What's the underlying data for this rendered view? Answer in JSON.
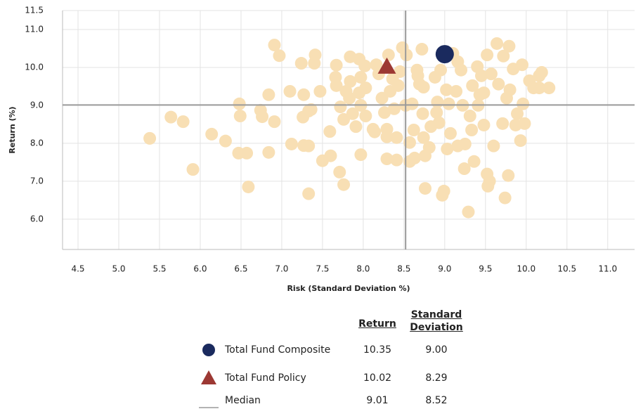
{
  "chart_data": {
    "type": "scatter",
    "xlabel": "Risk (Standard Deviation %)",
    "ylabel": "Return (%)",
    "xlim": [
      4.31,
      11.33
    ],
    "ylim": [
      5.2,
      11.5
    ],
    "xticks": [
      4.5,
      {
        "value": 5,
        "label": "5.0"
      },
      5.5,
      {
        "value": 6,
        "label": "6.0"
      },
      6.5,
      {
        "value": 7,
        "label": "7.0"
      },
      7.5,
      {
        "value": 8,
        "label": "8.0"
      },
      8.5,
      {
        "value": 9,
        "label": "9.0"
      },
      9.5,
      {
        "value": 10,
        "label": "10.0"
      },
      10.5,
      {
        "value": 11,
        "label": "11.0"
      }
    ],
    "yticks": [
      {
        "value": 6,
        "label": "6.0"
      },
      {
        "value": 7,
        "label": "7.0"
      },
      {
        "value": 8,
        "label": "8.0"
      },
      {
        "value": 9,
        "label": "9.0"
      },
      {
        "value": 10,
        "label": "10.0"
      },
      {
        "value": 11,
        "label": "11.0"
      },
      11.5
    ],
    "grid": true,
    "points": {
      "color": "#f8dfb4",
      "x": [
        5.38,
        5.64,
        5.79,
        5.91,
        6.14,
        6.31,
        6.48,
        6.49,
        6.47,
        6.57,
        6.59,
        6.74,
        6.76,
        6.84,
        6.84,
        6.91,
        6.97,
        6.91,
        7.1,
        7.12,
        7.24,
        7.27,
        7.26,
        7.27,
        7.33,
        7.33,
        7.33,
        7.36,
        7.4,
        7.41,
        7.47,
        7.5,
        7.59,
        7.6,
        7.66,
        7.67,
        7.67,
        7.71,
        7.76,
        7.72,
        7.76,
        7.79,
        7.84,
        7.84,
        7.83,
        7.87,
        7.91,
        7.95,
        7.97,
        7.95,
        7.97,
        7.97,
        8.02,
        8.03,
        8.03,
        8.12,
        8.14,
        8.19,
        8.23,
        8.26,
        8.29,
        8.29,
        8.29,
        8.31,
        8.33,
        8.38,
        8.41,
        8.41,
        8.43,
        8.45,
        8.48,
        8.52,
        8.53,
        8.57,
        8.57,
        8.6,
        8.62,
        8.63,
        8.66,
        8.69,
        8.72,
        8.73,
        8.74,
        8.74,
        8.76,
        8.76,
        8.81,
        8.83,
        8.88,
        8.9,
        8.93,
        8.95,
        8.97,
        8.99,
        9.02,
        9.03,
        9.05,
        9.07,
        9.1,
        9.14,
        9.16,
        9.16,
        9.2,
        9.22,
        9.24,
        9.25,
        9.29,
        9.31,
        9.33,
        9.34,
        9.36,
        9.4,
        9.41,
        9.43,
        9.45,
        9.48,
        9.52,
        9.52,
        9.53,
        9.55,
        9.57,
        9.6,
        9.64,
        9.66,
        9.71,
        9.72,
        9.74,
        9.76,
        9.78,
        9.79,
        9.8,
        9.84,
        9.87,
        9.89,
        9.93,
        9.95,
        9.96,
        9.98,
        10.04,
        10.09,
        10.16,
        10.19,
        10.28,
        10.16,
        8.36,
        8.16,
        8.67,
        8.91,
        9.48
      ],
      "values": [
        8.13,
        8.69,
        8.57,
        7.31,
        8.24,
        8.06,
        9.04,
        8.72,
        7.74,
        7.74,
        6.85,
        8.87,
        8.7,
        9.28,
        7.76,
        10.59,
        10.31,
        8.57,
        9.37,
        7.98,
        10.11,
        9.28,
        8.69,
        7.94,
        7.93,
        6.67,
        8.85,
        8.89,
        10.11,
        10.33,
        9.37,
        7.54,
        8.31,
        7.67,
        9.74,
        10.06,
        9.52,
        7.24,
        6.91,
        8.96,
        8.63,
        9.37,
        10.28,
        9.63,
        9.19,
        8.78,
        8.44,
        10.22,
        9.74,
        9.33,
        9.0,
        7.7,
        10.04,
        9.46,
        8.72,
        8.37,
        8.3,
        9.83,
        9.19,
        8.81,
        8.37,
        8.17,
        7.59,
        10.33,
        9.37,
        8.91,
        8.15,
        7.56,
        9.52,
        9.89,
        10.52,
        9.0,
        10.33,
        8.02,
        7.52,
        9.04,
        8.35,
        7.61,
        9.93,
        9.56,
        10.48,
        8.78,
        9.48,
        8.15,
        7.67,
        6.81,
        7.89,
        8.44,
        9.74,
        8.81,
        8.54,
        9.93,
        6.63,
        6.74,
        9.41,
        7.85,
        9.04,
        8.26,
        10.37,
        9.37,
        10.15,
        7.93,
        9.93,
        9.0,
        7.33,
        7.98,
        6.19,
        8.72,
        8.35,
        9.52,
        7.52,
        10.02,
        9.0,
        9.28,
        9.78,
        8.48,
        10.33,
        7.19,
        6.87,
        7.0,
        9.83,
        7.93,
        10.63,
        9.56,
        8.52,
        10.3,
        6.56,
        9.19,
        7.15,
        10.56,
        9.41,
        9.96,
        8.48,
        8.78,
        8.07,
        10.07,
        9.04,
        8.52,
        9.65,
        9.46,
        9.78,
        9.87,
        9.46,
        9.46,
        9.7,
        10.07,
        9.78,
        9.09,
        9.33
      ]
    },
    "table_headers": [
      "Return",
      "Standard Deviation"
    ],
    "series": [
      {
        "name": "Total Fund Composite",
        "marker": "circle",
        "color": "#1a2a5e",
        "x": [
          9.0
        ],
        "values": [
          10.35
        ],
        "x_labels": [
          "9.00"
        ],
        "value_labels": [
          "10.35"
        ]
      },
      {
        "name": "Total Fund Policy",
        "marker": "triangle",
        "color": "#9c3833",
        "x": [
          8.29
        ],
        "values": [
          10.02
        ],
        "x_labels": [
          "8.29"
        ],
        "value_labels": [
          "10.02"
        ]
      }
    ],
    "median": {
      "name": "Median",
      "color": "#9a9a9a",
      "x": 8.52,
      "y": 9.01,
      "x_label": "8.52",
      "y_label": "9.01"
    }
  }
}
